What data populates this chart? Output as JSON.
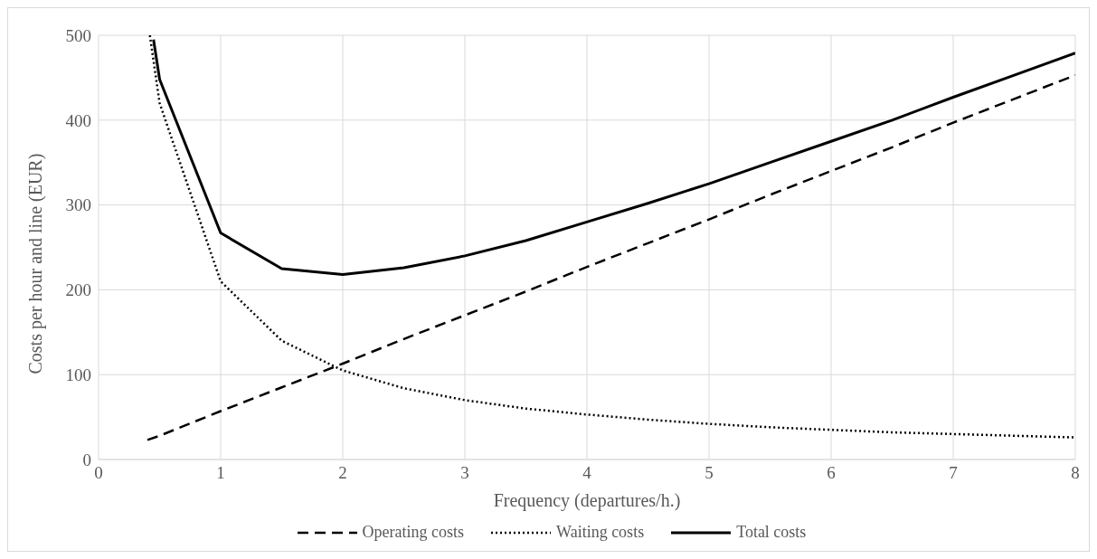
{
  "chart_data": {
    "type": "line",
    "xlabel": "Frequency (departures/h.)",
    "ylabel": "Costs per hour and line (EUR)",
    "xlim": [
      0,
      8
    ],
    "xticks": [
      0,
      1,
      2,
      3,
      4,
      5,
      6,
      7,
      8
    ],
    "ylim": [
      0,
      500
    ],
    "yticks": [
      0,
      100,
      200,
      300,
      400,
      500
    ],
    "grid": true,
    "legend": "bottom",
    "marker": "none",
    "series": [
      {
        "name": "Operating costs",
        "color": "#000000",
        "line_style": "dashed",
        "x": [
          0.4,
          0.5,
          1,
          1.5,
          2,
          2.5,
          3,
          3.5,
          4,
          4.5,
          5,
          5.5,
          6,
          6.5,
          7,
          7.5,
          8
        ],
        "values": [
          23,
          28,
          57,
          85,
          113,
          142,
          170,
          198,
          227,
          255,
          283,
          312,
          340,
          368,
          397,
          425,
          453
        ]
      },
      {
        "name": "Waiting costs",
        "color": "#000000",
        "line_style": "dotted",
        "x": [
          0.42,
          0.5,
          1,
          1.5,
          2,
          2.5,
          3,
          3.5,
          4,
          4.5,
          5,
          5.5,
          6,
          6.5,
          7,
          7.5,
          8
        ],
        "values": [
          500,
          420,
          210,
          140,
          105,
          84,
          70,
          60,
          53,
          47,
          42,
          38,
          35,
          32,
          30,
          28,
          26
        ]
      },
      {
        "name": "Total costs",
        "color": "#000000",
        "line_style": "solid",
        "x": [
          0.45,
          0.5,
          1,
          1.5,
          2,
          2.5,
          3,
          3.5,
          4,
          4.5,
          5,
          5.5,
          6,
          6.5,
          7,
          7.5,
          8
        ],
        "values": [
          495,
          448,
          267,
          225,
          218,
          226,
          240,
          258,
          280,
          302,
          325,
          350,
          375,
          400,
          427,
          453,
          479
        ]
      }
    ]
  }
}
